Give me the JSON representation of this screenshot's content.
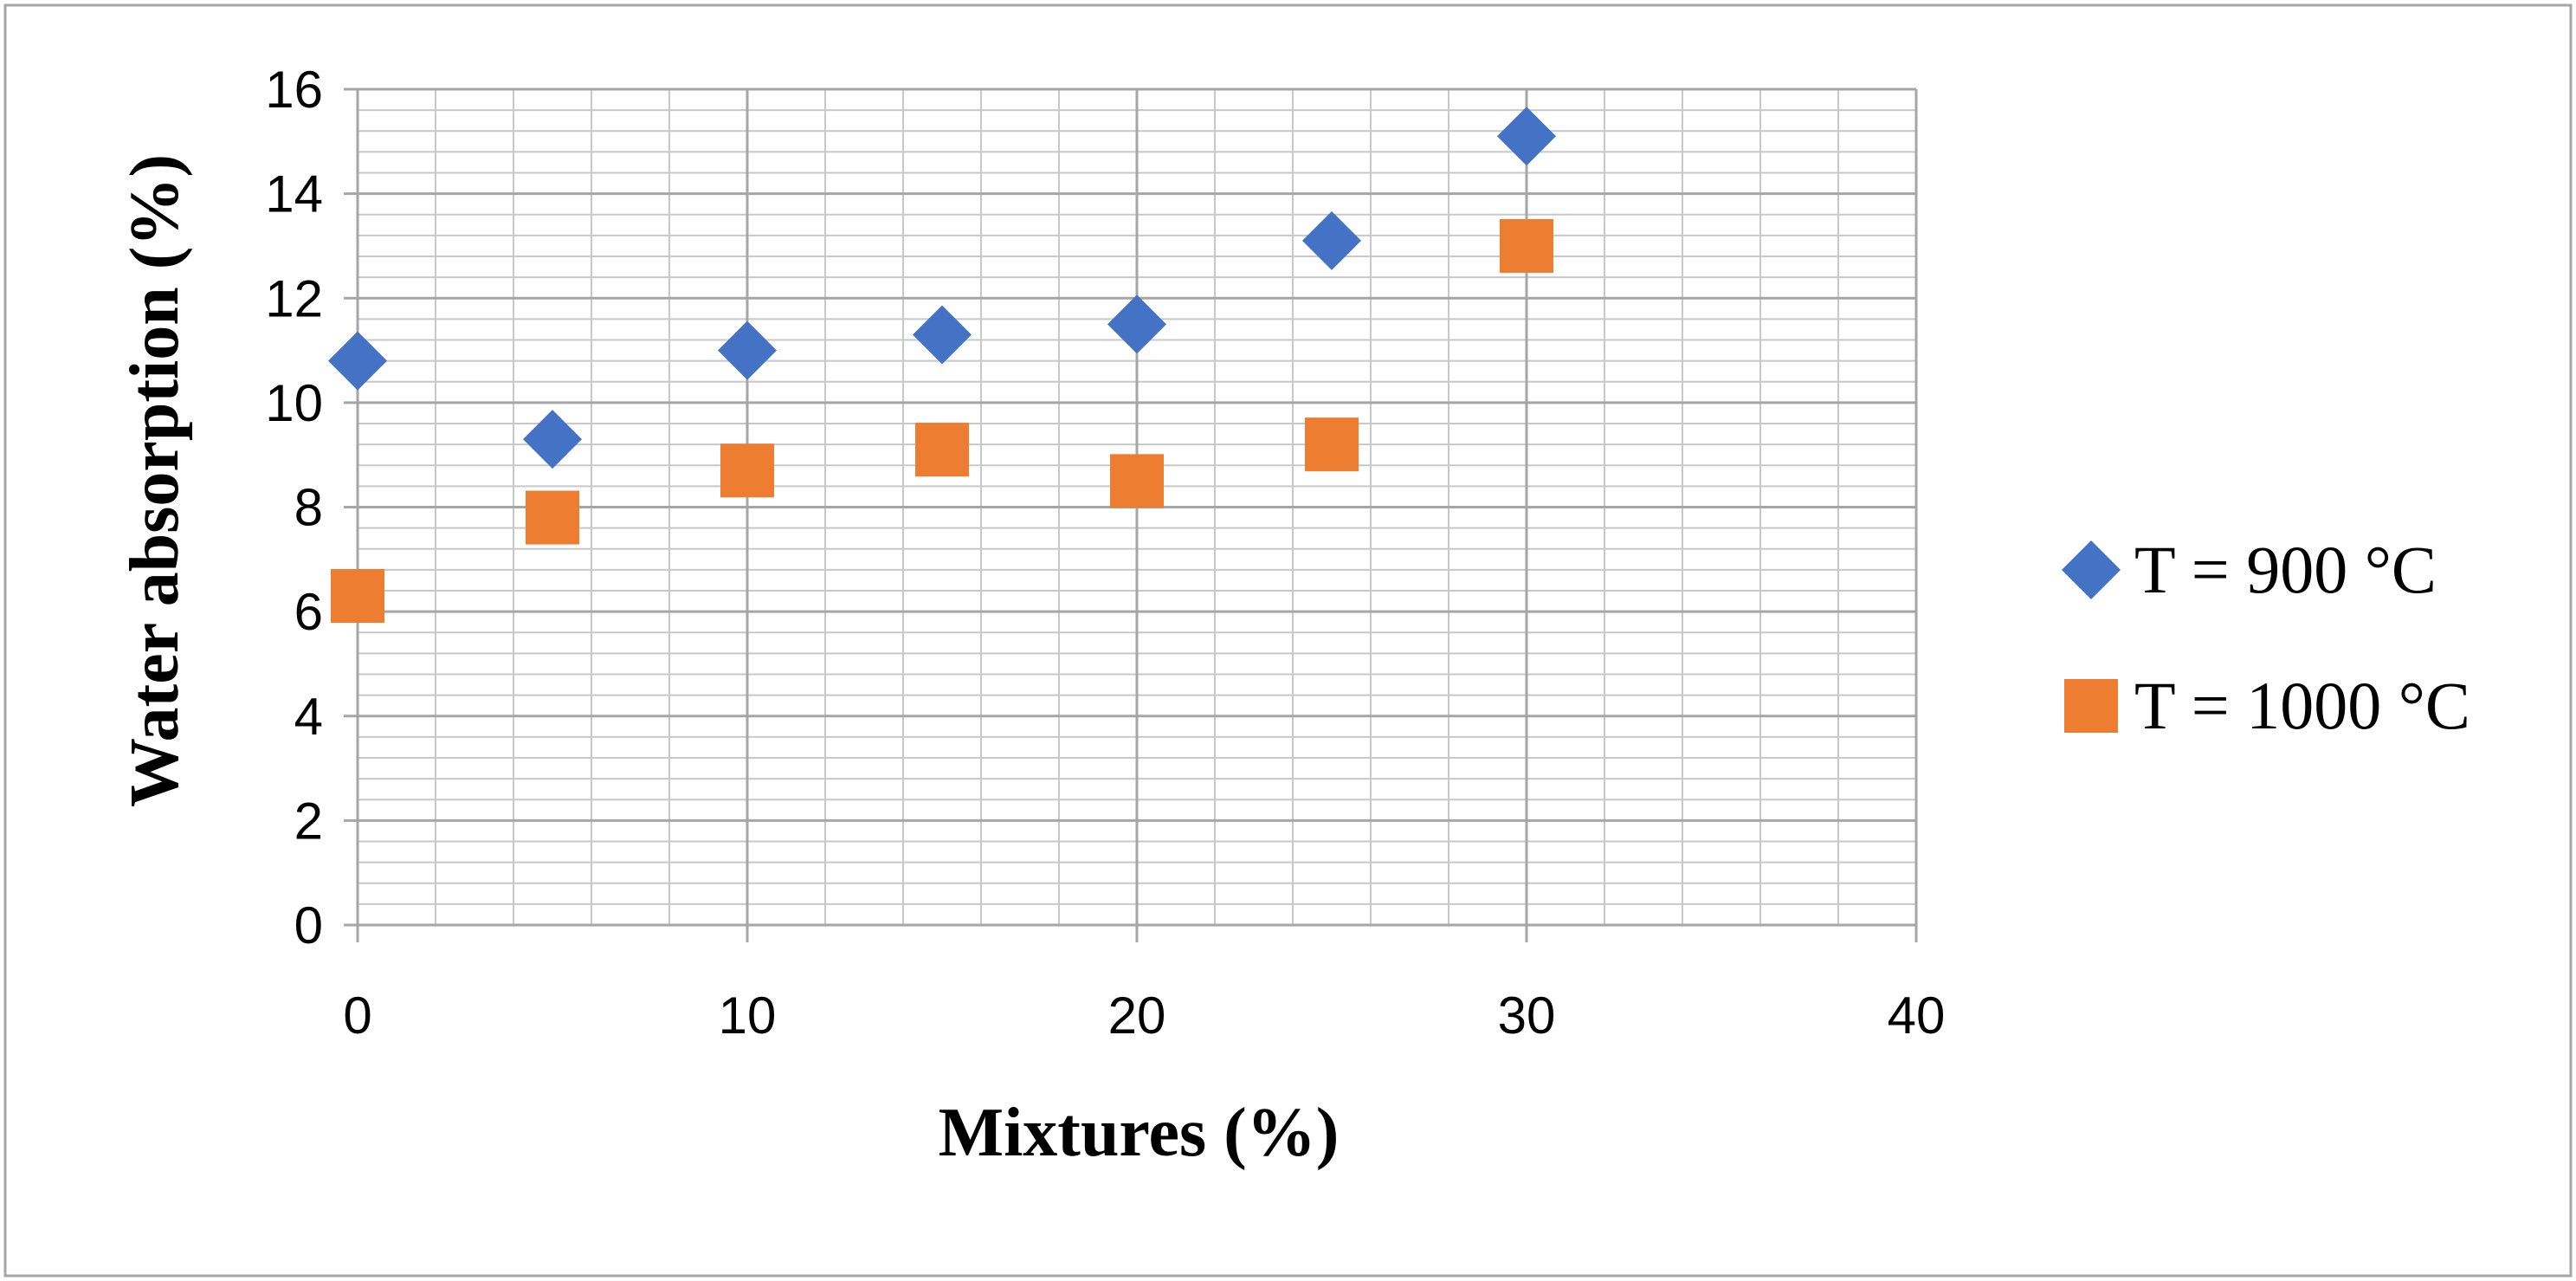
{
  "chart_data": {
    "type": "scatter",
    "title": "",
    "xlabel": "Mixtures (%)",
    "ylabel": "Water absorption (%)",
    "xlim": [
      0,
      40
    ],
    "ylim": [
      0,
      16
    ],
    "x_ticks": [
      0,
      10,
      20,
      30,
      40
    ],
    "y_ticks": [
      0,
      2,
      4,
      6,
      8,
      10,
      12,
      14,
      16
    ],
    "x_tick_labels": [
      "0",
      "10",
      "20",
      "30",
      "40"
    ],
    "y_tick_labels": [
      "0",
      "2",
      "4",
      "6",
      "8",
      "10",
      "12",
      "14",
      "16"
    ],
    "x_major_step": 10,
    "x_minor_step": 2,
    "y_major_step": 2,
    "y_minor_step": 0.4,
    "grid": true,
    "legend_position": "right",
    "series": [
      {
        "name": "T = 900 °C",
        "marker": "diamond",
        "color": "#4472C4",
        "points": [
          {
            "x": 0,
            "y": 10.8
          },
          {
            "x": 5,
            "y": 9.3
          },
          {
            "x": 10,
            "y": 11.0
          },
          {
            "x": 15,
            "y": 11.3
          },
          {
            "x": 20,
            "y": 11.5
          },
          {
            "x": 25,
            "y": 13.1
          },
          {
            "x": 30,
            "y": 15.1
          }
        ]
      },
      {
        "name": "T = 1000 °C",
        "marker": "square",
        "color": "#ED7D31",
        "points": [
          {
            "x": 0,
            "y": 6.3
          },
          {
            "x": 5,
            "y": 7.8
          },
          {
            "x": 10,
            "y": 8.7
          },
          {
            "x": 15,
            "y": 9.1
          },
          {
            "x": 20,
            "y": 8.5
          },
          {
            "x": 25,
            "y": 9.2
          },
          {
            "x": 30,
            "y": 13.0
          }
        ]
      }
    ],
    "colors": {
      "grid_major": "#A6A6A6",
      "grid_minor": "#C8C8C8",
      "frame_border": "#A6A6A6"
    }
  }
}
